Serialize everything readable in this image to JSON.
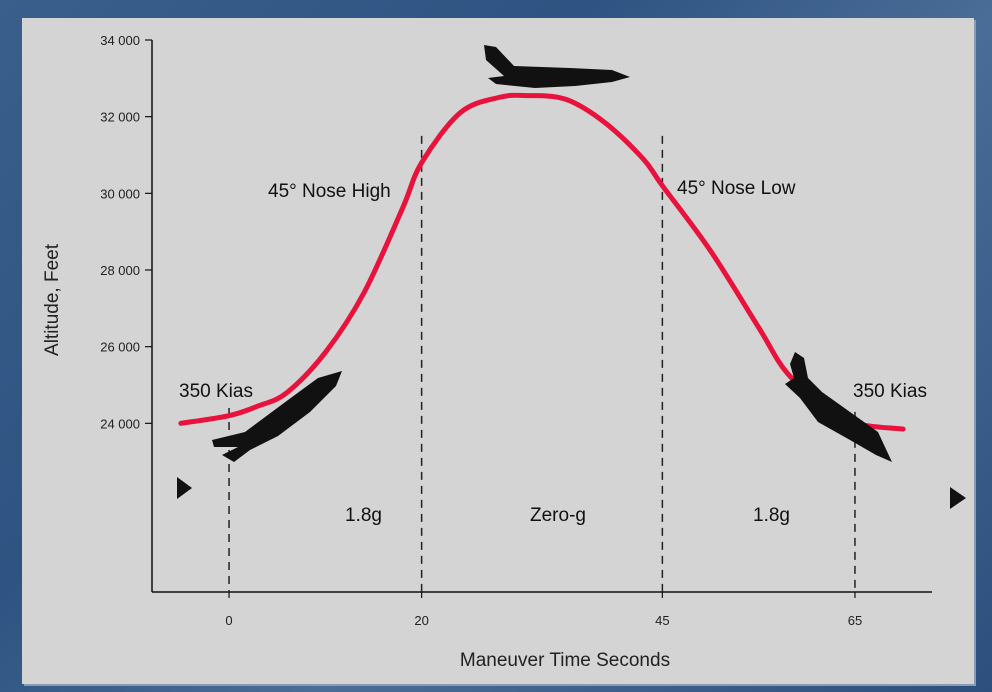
{
  "chart_data": {
    "type": "line",
    "xlabel": "Maneuver Time Seconds",
    "ylabel": "Altitude, Feet",
    "x_ticks": [
      0,
      20,
      45,
      65
    ],
    "x_tick_labels": [
      "0",
      "20",
      "45",
      "65"
    ],
    "y_ticks": [
      24000,
      26000,
      28000,
      30000,
      32000,
      34000
    ],
    "y_tick_labels": [
      "24 000",
      "26 000",
      "28 000",
      "30 000",
      "32 000",
      "34 000"
    ],
    "xlim": [
      -8,
      73
    ],
    "ylim": [
      19600,
      34000
    ],
    "grid": false,
    "series": [
      {
        "color": "#e8123c",
        "x": [
          -5,
          0,
          3,
          6,
          10,
          14,
          18,
          20,
          24,
          28,
          31,
          35,
          39,
          43,
          45,
          50,
          55,
          58,
          62,
          65,
          70
        ],
        "y": [
          24000,
          24200,
          24450,
          24800,
          25850,
          27400,
          29600,
          30800,
          32100,
          32500,
          32550,
          32450,
          31850,
          30900,
          30200,
          28500,
          26500,
          25300,
          24450,
          24000,
          23850
        ]
      }
    ],
    "reference_lines_x": [
      0,
      20,
      45,
      65
    ],
    "annotations": [
      {
        "text": "45° Nose High"
      },
      {
        "text": "45° Nose Low"
      },
      {
        "text": "350 Kias"
      },
      {
        "text": "350 Kias"
      },
      {
        "text": "1.8g"
      },
      {
        "text": "Zero-g"
      },
      {
        "text": "1.8g"
      }
    ]
  }
}
